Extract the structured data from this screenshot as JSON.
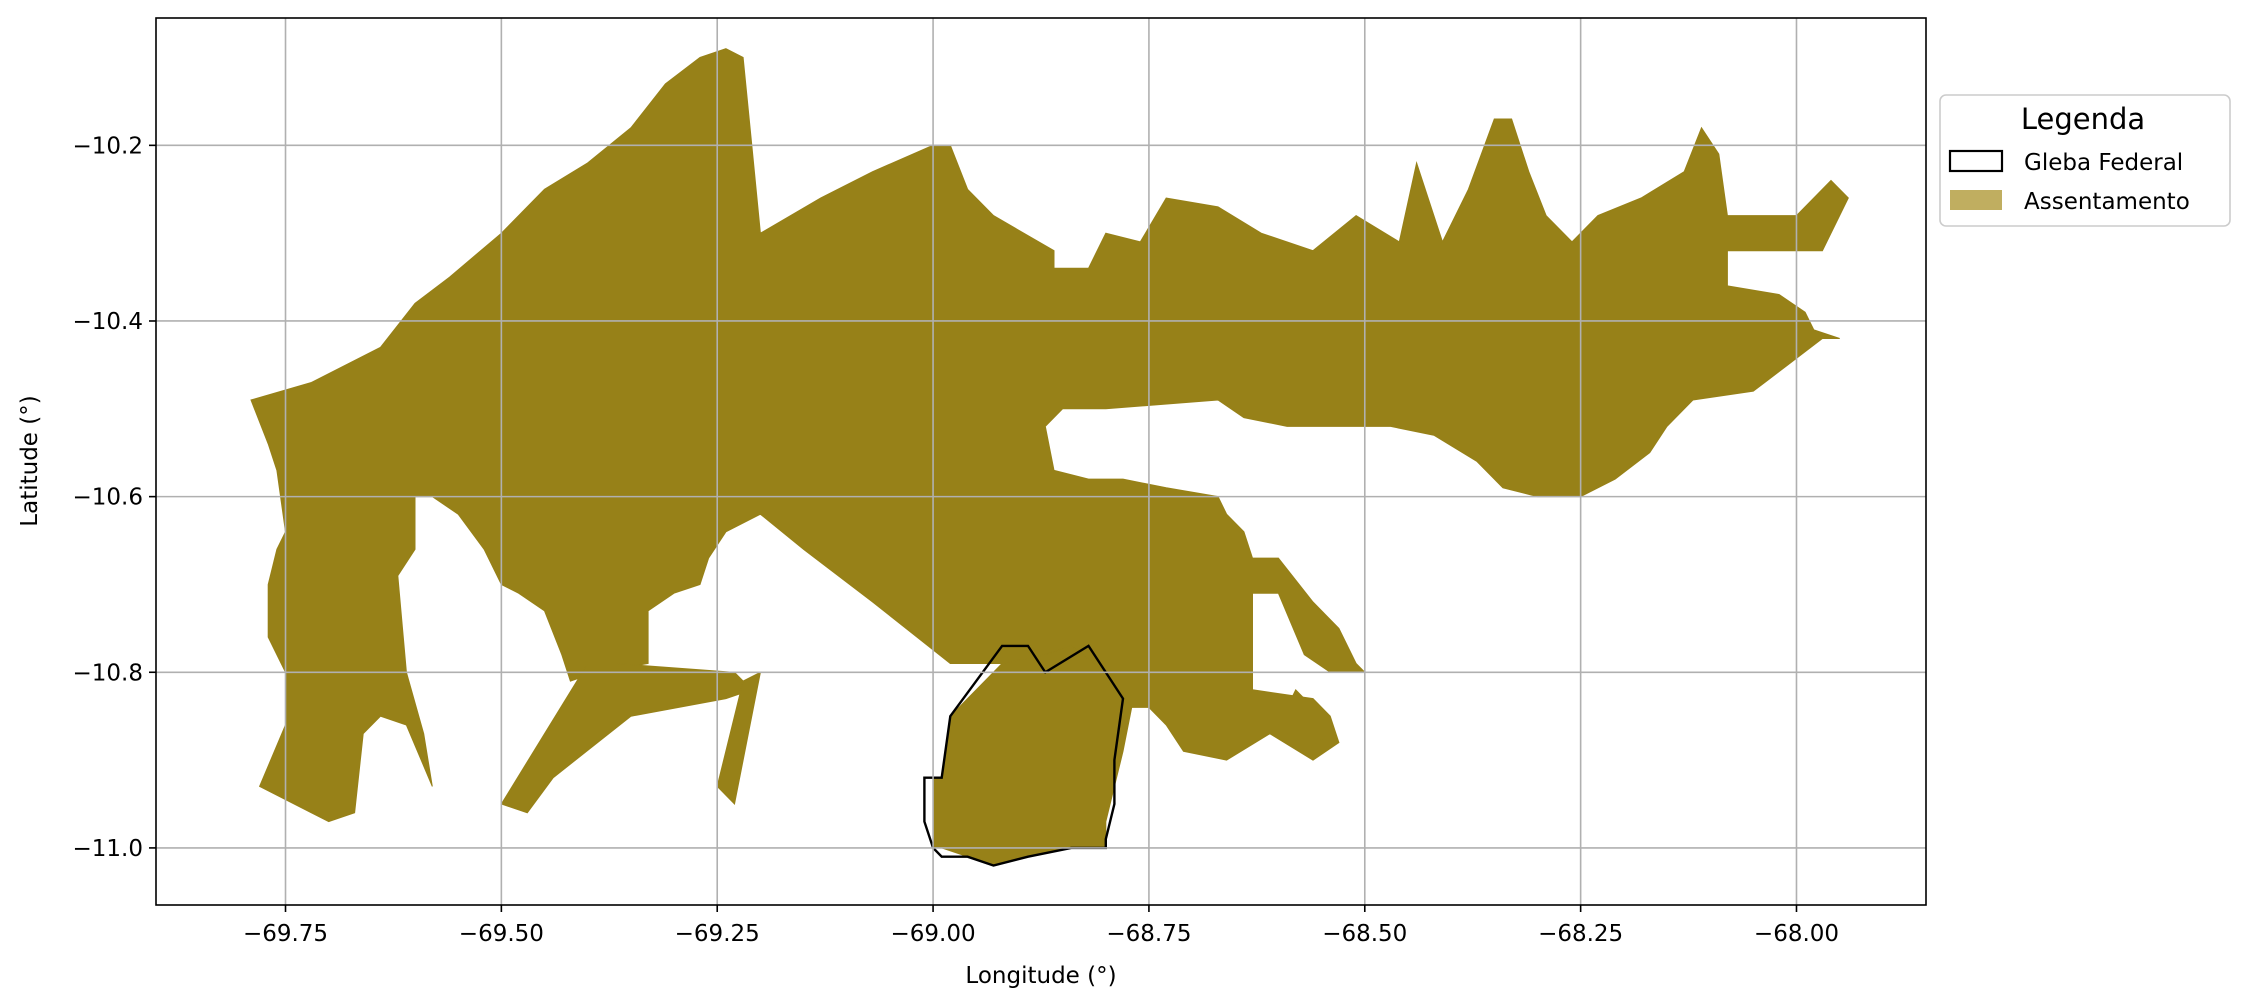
{
  "map": {
    "xlabel": "Longitude (°)",
    "ylabel": "Latitude (°)",
    "xlim": [
      -69.9,
      -67.85
    ],
    "ylim": [
      -11.065,
      -10.055
    ],
    "x_ticks": [
      -69.75,
      -69.5,
      -69.25,
      -69.0,
      -68.75,
      -68.5,
      -68.25,
      -68.0
    ],
    "x_tick_labels": [
      "−69.75",
      "−69.50",
      "−69.25",
      "−69.00",
      "−68.75",
      "−68.50",
      "−68.25",
      "−68.00"
    ],
    "y_ticks": [
      -10.2,
      -10.4,
      -10.6,
      -10.8,
      -11.0
    ],
    "y_tick_labels": [
      "−10.2",
      "−10.4",
      "−10.6",
      "−10.8",
      "−11.0"
    ],
    "grid": true,
    "legend": {
      "title": "Legenda",
      "placement": "outside-right-top",
      "items": [
        {
          "label": "Gleba Federal",
          "style": "outline",
          "color": "#000000"
        },
        {
          "label": "Assentamento",
          "style": "fill",
          "color": "#c0ae60"
        }
      ]
    },
    "colors": {
      "assentamento_fill": "#978118",
      "gleba_outline": "#000000",
      "grid": "#b0b0b0"
    },
    "assentamento_polygons": [
      {
        "name": "assentamento-main",
        "coords": [
          [
            -69.72,
            -10.47
          ],
          [
            -69.64,
            -10.43
          ],
          [
            -69.6,
            -10.38
          ],
          [
            -69.56,
            -10.35
          ],
          [
            -69.5,
            -10.3
          ],
          [
            -69.45,
            -10.25
          ],
          [
            -69.4,
            -10.22
          ],
          [
            -69.35,
            -10.18
          ],
          [
            -69.31,
            -10.13
          ],
          [
            -69.27,
            -10.1
          ],
          [
            -69.24,
            -10.09
          ],
          [
            -69.22,
            -10.1
          ],
          [
            -69.21,
            -10.2
          ],
          [
            -69.2,
            -10.3
          ],
          [
            -69.13,
            -10.26
          ],
          [
            -69.07,
            -10.23
          ],
          [
            -69.0,
            -10.2
          ],
          [
            -68.98,
            -10.2
          ],
          [
            -68.96,
            -10.25
          ],
          [
            -68.93,
            -10.28
          ],
          [
            -68.86,
            -10.32
          ],
          [
            -68.86,
            -10.34
          ],
          [
            -68.82,
            -10.34
          ],
          [
            -68.8,
            -10.3
          ],
          [
            -68.76,
            -10.31
          ],
          [
            -68.73,
            -10.26
          ],
          [
            -68.67,
            -10.27
          ],
          [
            -68.62,
            -10.3
          ],
          [
            -68.56,
            -10.32
          ],
          [
            -68.51,
            -10.28
          ],
          [
            -68.46,
            -10.31
          ],
          [
            -68.44,
            -10.22
          ],
          [
            -68.41,
            -10.31
          ],
          [
            -68.38,
            -10.25
          ],
          [
            -68.35,
            -10.17
          ],
          [
            -68.33,
            -10.17
          ],
          [
            -68.31,
            -10.23
          ],
          [
            -68.29,
            -10.28
          ],
          [
            -68.26,
            -10.31
          ],
          [
            -68.23,
            -10.28
          ],
          [
            -68.18,
            -10.26
          ],
          [
            -68.13,
            -10.23
          ],
          [
            -68.11,
            -10.18
          ],
          [
            -68.09,
            -10.21
          ],
          [
            -68.08,
            -10.28
          ],
          [
            -68.0,
            -10.28
          ],
          [
            -67.96,
            -10.24
          ],
          [
            -67.94,
            -10.26
          ],
          [
            -67.97,
            -10.32
          ],
          [
            -68.08,
            -10.32
          ],
          [
            -68.08,
            -10.36
          ],
          [
            -68.02,
            -10.37
          ],
          [
            -67.99,
            -10.39
          ],
          [
            -67.98,
            -10.41
          ],
          [
            -67.95,
            -10.42
          ],
          [
            -67.97,
            -10.42
          ],
          [
            -68.01,
            -10.45
          ],
          [
            -68.05,
            -10.48
          ],
          [
            -68.12,
            -10.49
          ],
          [
            -68.15,
            -10.52
          ],
          [
            -68.17,
            -10.55
          ],
          [
            -68.21,
            -10.58
          ],
          [
            -68.25,
            -10.6
          ],
          [
            -68.3,
            -10.6
          ],
          [
            -68.34,
            -10.59
          ],
          [
            -68.37,
            -10.56
          ],
          [
            -68.42,
            -10.53
          ],
          [
            -68.47,
            -10.52
          ],
          [
            -68.52,
            -10.52
          ],
          [
            -68.59,
            -10.52
          ],
          [
            -68.64,
            -10.51
          ],
          [
            -68.67,
            -10.49
          ],
          [
            -68.8,
            -10.5
          ],
          [
            -68.85,
            -10.5
          ],
          [
            -68.87,
            -10.52
          ],
          [
            -68.86,
            -10.57
          ],
          [
            -68.82,
            -10.58
          ],
          [
            -68.78,
            -10.58
          ],
          [
            -68.73,
            -10.59
          ],
          [
            -68.67,
            -10.6
          ],
          [
            -68.66,
            -10.62
          ],
          [
            -68.64,
            -10.64
          ],
          [
            -68.63,
            -10.67
          ],
          [
            -68.6,
            -10.67
          ],
          [
            -68.56,
            -10.72
          ],
          [
            -68.53,
            -10.75
          ],
          [
            -68.51,
            -10.79
          ],
          [
            -68.5,
            -10.8
          ],
          [
            -68.54,
            -10.8
          ],
          [
            -68.57,
            -10.78
          ],
          [
            -68.6,
            -10.71
          ],
          [
            -68.63,
            -10.71
          ],
          [
            -68.63,
            -10.82
          ],
          [
            -68.56,
            -10.83
          ],
          [
            -68.54,
            -10.85
          ],
          [
            -68.53,
            -10.88
          ],
          [
            -68.56,
            -10.9
          ],
          [
            -68.61,
            -10.87
          ],
          [
            -68.66,
            -10.9
          ],
          [
            -68.71,
            -10.89
          ],
          [
            -68.73,
            -10.86
          ],
          [
            -68.75,
            -10.84
          ],
          [
            -68.79,
            -10.84
          ],
          [
            -68.8,
            -10.8
          ],
          [
            -68.84,
            -10.77
          ],
          [
            -68.87,
            -10.78
          ],
          [
            -68.91,
            -10.79
          ],
          [
            -68.98,
            -10.79
          ],
          [
            -69.07,
            -10.72
          ],
          [
            -69.15,
            -10.66
          ],
          [
            -69.2,
            -10.62
          ],
          [
            -69.24,
            -10.64
          ],
          [
            -69.26,
            -10.67
          ],
          [
            -69.27,
            -10.7
          ],
          [
            -69.3,
            -10.71
          ],
          [
            -69.33,
            -10.73
          ],
          [
            -69.33,
            -10.79
          ],
          [
            -69.39,
            -10.8
          ],
          [
            -69.42,
            -10.81
          ],
          [
            -69.43,
            -10.78
          ],
          [
            -69.45,
            -10.73
          ],
          [
            -69.48,
            -10.71
          ],
          [
            -69.5,
            -10.7
          ],
          [
            -69.52,
            -10.66
          ],
          [
            -69.55,
            -10.62
          ],
          [
            -69.58,
            -10.6
          ],
          [
            -69.6,
            -10.6
          ],
          [
            -69.6,
            -10.66
          ],
          [
            -69.62,
            -10.69
          ],
          [
            -69.61,
            -10.8
          ],
          [
            -69.59,
            -10.87
          ],
          [
            -69.58,
            -10.93
          ],
          [
            -69.61,
            -10.86
          ],
          [
            -69.64,
            -10.85
          ],
          [
            -69.66,
            -10.87
          ],
          [
            -69.67,
            -10.96
          ],
          [
            -69.7,
            -10.97
          ],
          [
            -69.72,
            -10.96
          ],
          [
            -69.78,
            -10.93
          ],
          [
            -69.75,
            -10.86
          ],
          [
            -69.75,
            -10.8
          ],
          [
            -69.77,
            -10.76
          ],
          [
            -69.77,
            -10.7
          ],
          [
            -69.76,
            -10.66
          ],
          [
            -69.75,
            -10.64
          ],
          [
            -69.76,
            -10.57
          ],
          [
            -69.77,
            -10.54
          ],
          [
            -69.79,
            -10.49
          ]
        ]
      },
      {
        "name": "assentamento-strip-1",
        "coords": [
          [
            -69.4,
            -10.79
          ],
          [
            -69.37,
            -10.79
          ],
          [
            -69.23,
            -10.8
          ],
          [
            -69.21,
            -10.82
          ],
          [
            -69.24,
            -10.83
          ],
          [
            -69.35,
            -10.85
          ],
          [
            -69.44,
            -10.92
          ],
          [
            -69.47,
            -10.96
          ],
          [
            -69.5,
            -10.95
          ],
          [
            -69.45,
            -10.87
          ]
        ]
      },
      {
        "name": "assentamento-strip-2",
        "coords": [
          [
            -69.22,
            -10.81
          ],
          [
            -69.2,
            -10.8
          ],
          [
            -69.23,
            -10.95
          ],
          [
            -69.25,
            -10.93
          ]
        ]
      },
      {
        "name": "assentamento-south",
        "coords": [
          [
            -68.99,
            -10.92
          ],
          [
            -68.98,
            -10.85
          ],
          [
            -68.92,
            -10.79
          ],
          [
            -68.87,
            -10.78
          ],
          [
            -68.84,
            -10.77
          ],
          [
            -68.8,
            -10.8
          ],
          [
            -68.77,
            -10.84
          ],
          [
            -68.78,
            -10.89
          ],
          [
            -68.79,
            -10.93
          ],
          [
            -68.8,
            -10.97
          ],
          [
            -68.8,
            -11.0
          ],
          [
            -68.82,
            -11.0
          ],
          [
            -68.84,
            -11.0
          ],
          [
            -68.89,
            -11.01
          ],
          [
            -68.93,
            -11.02
          ],
          [
            -68.96,
            -11.01
          ],
          [
            -68.99,
            -11.0
          ],
          [
            -69.0,
            -11.0
          ],
          [
            -69.0,
            -10.92
          ]
        ]
      },
      {
        "name": "assentamento-east-sub",
        "coords": [
          [
            -68.58,
            -10.82
          ],
          [
            -68.6,
            -10.86
          ],
          [
            -68.57,
            -10.89
          ],
          [
            -68.54,
            -10.87
          ],
          [
            -68.56,
            -10.84
          ]
        ]
      }
    ],
    "gleba_federal_outline": [
      [
        -69.01,
        -10.92
      ],
      [
        -68.99,
        -10.92
      ],
      [
        -68.98,
        -10.85
      ],
      [
        -68.92,
        -10.77
      ],
      [
        -68.89,
        -10.77
      ],
      [
        -68.87,
        -10.8
      ],
      [
        -68.82,
        -10.77
      ],
      [
        -68.78,
        -10.83
      ],
      [
        -68.79,
        -10.9
      ],
      [
        -68.79,
        -10.95
      ],
      [
        -68.8,
        -10.99
      ],
      [
        -68.8,
        -11.0
      ],
      [
        -68.84,
        -11.0
      ],
      [
        -68.89,
        -11.01
      ],
      [
        -68.93,
        -11.02
      ],
      [
        -68.96,
        -11.01
      ],
      [
        -68.99,
        -11.01
      ],
      [
        -69.0,
        -11.0
      ],
      [
        -69.01,
        -10.97
      ]
    ]
  }
}
